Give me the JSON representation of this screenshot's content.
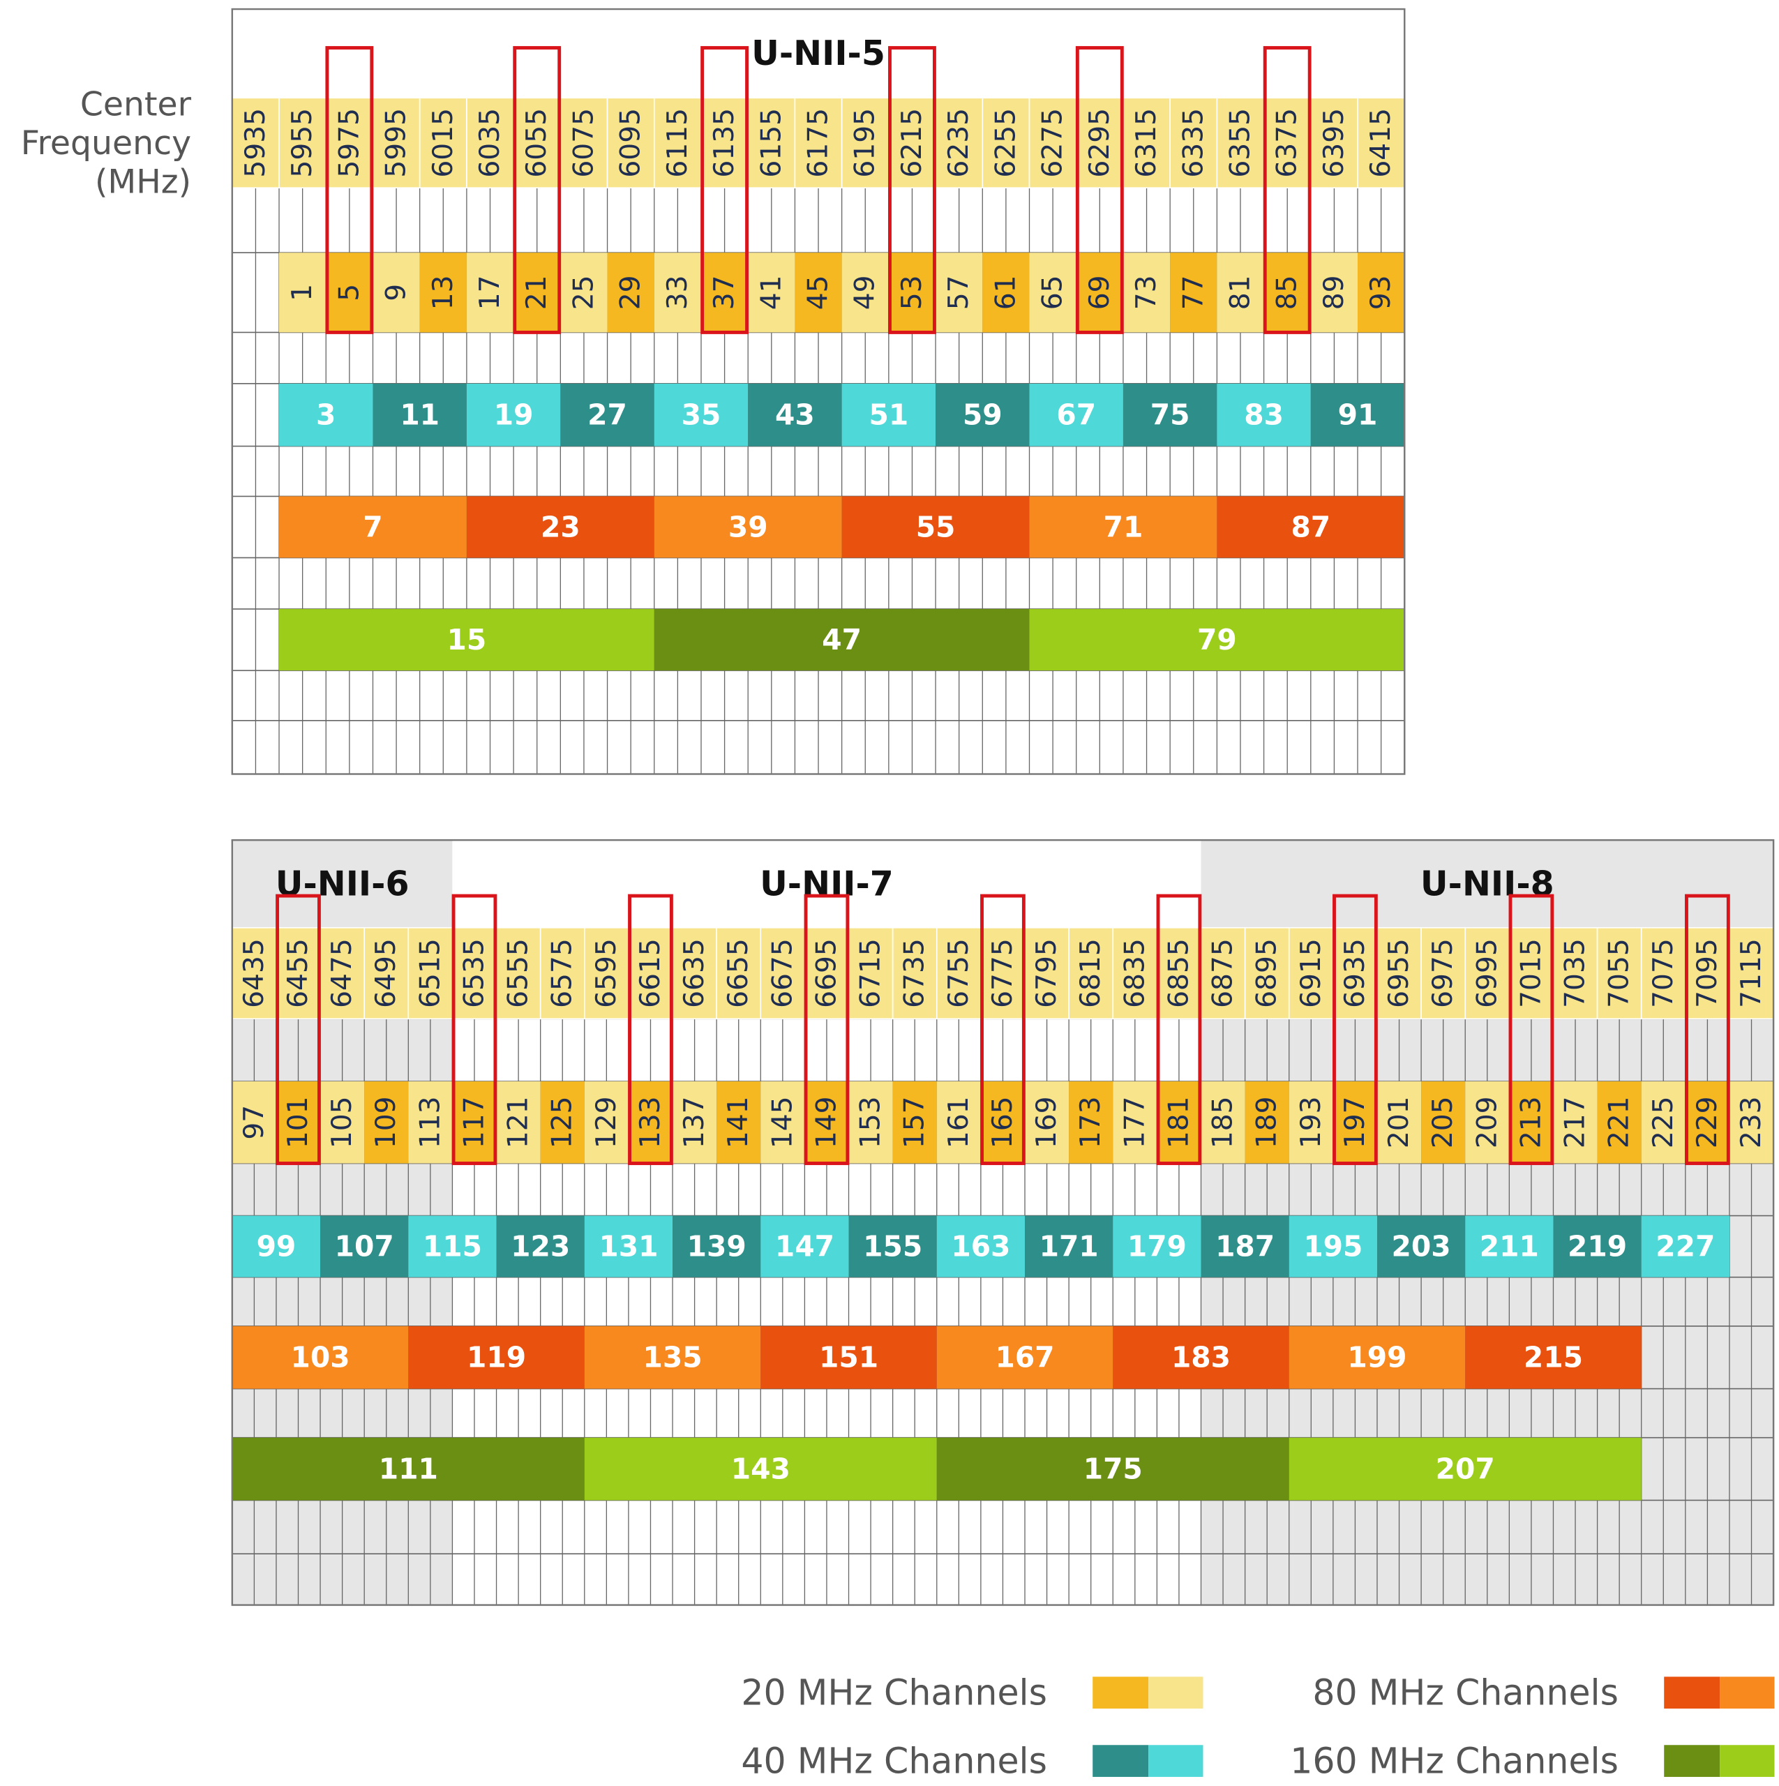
{
  "axis_label": [
    "Center",
    "Frequency",
    "(MHz)"
  ],
  "frequency_color": "#f8e48a",
  "panels": [
    {
      "bands": [
        {
          "label": "U-NII-5",
          "background": "#ffffff"
        }
      ],
      "frequencies": [
        5935,
        5955,
        5975,
        5995,
        6015,
        6035,
        6055,
        6075,
        6095,
        6115,
        6135,
        6155,
        6175,
        6195,
        6215,
        6235,
        6255,
        6275,
        6295,
        6315,
        6335,
        6355,
        6375,
        6395,
        6415
      ],
      "channels_20": {
        "values": [
          1,
          5,
          9,
          13,
          17,
          21,
          25,
          29,
          33,
          37,
          41,
          45,
          49,
          53,
          57,
          61,
          65,
          69,
          73,
          77,
          81,
          85,
          89,
          93
        ],
        "highlighted": [
          false,
          true,
          false,
          false,
          false,
          true,
          false,
          false,
          false,
          true,
          false,
          false,
          false,
          true,
          false,
          false,
          false,
          true,
          false,
          false,
          false,
          true,
          false,
          false
        ],
        "colors": [
          "#f8e48a",
          "#f5b820"
        ]
      },
      "channels_40": {
        "values": [
          3,
          11,
          19,
          27,
          35,
          43,
          51,
          59,
          67,
          75,
          83,
          91
        ],
        "colors": [
          "#4fd8d8",
          "#2e8f8a"
        ]
      },
      "channels_80": {
        "values": [
          7,
          23,
          39,
          55,
          71,
          87
        ],
        "colors": [
          "#f7891f",
          "#e9510f"
        ]
      },
      "channels_160": {
        "values": [
          15,
          47,
          79
        ],
        "colors": [
          "#9ccd1b",
          "#6a8f12"
        ]
      }
    },
    {
      "bands": [
        {
          "label": "U-NII-6",
          "background": "#e6e6e6"
        },
        {
          "label": "U-NII-7",
          "background": "#ffffff"
        },
        {
          "label": "U-NII-8",
          "background": "#e6e6e6"
        }
      ],
      "frequencies": [
        6435,
        6455,
        6475,
        6495,
        6515,
        6535,
        6555,
        6575,
        6595,
        6615,
        6635,
        6655,
        6675,
        6695,
        6715,
        6735,
        6755,
        6775,
        6795,
        6815,
        6835,
        6855,
        6875,
        6895,
        6915,
        6935,
        6955,
        6975,
        6995,
        7015,
        7035,
        7055,
        7075,
        7095,
        7115
      ],
      "channels_20": {
        "values": [
          97,
          101,
          105,
          109,
          113,
          117,
          121,
          125,
          129,
          133,
          137,
          141,
          145,
          149,
          153,
          157,
          161,
          165,
          169,
          173,
          177,
          181,
          185,
          189,
          193,
          197,
          201,
          205,
          209,
          213,
          217,
          221,
          225,
          229,
          233
        ],
        "highlighted": [
          false,
          true,
          false,
          false,
          false,
          true,
          false,
          false,
          false,
          true,
          false,
          false,
          false,
          true,
          false,
          false,
          false,
          true,
          false,
          false,
          false,
          true,
          false,
          false,
          false,
          true,
          false,
          false,
          false,
          true,
          false,
          false,
          false,
          true,
          false
        ],
        "colors": [
          "#f8e48a",
          "#f5b820"
        ]
      },
      "channels_40": {
        "values": [
          99,
          107,
          115,
          123,
          131,
          139,
          147,
          155,
          163,
          171,
          179,
          187,
          195,
          203,
          211,
          219,
          227
        ],
        "colors": [
          "#4fd8d8",
          "#2e8f8a"
        ]
      },
      "channels_80": {
        "values": [
          103,
          119,
          135,
          151,
          167,
          183,
          199,
          215
        ],
        "colors": [
          "#f7891f",
          "#e9510f"
        ]
      },
      "channels_160": {
        "values": [
          111,
          143,
          175,
          207
        ],
        "colors": [
          "#6a8f12",
          "#9ccd1b"
        ]
      }
    }
  ],
  "legend": [
    {
      "label": "20 MHz Channels",
      "colors": [
        "#f8e48a",
        "#f5b820"
      ]
    },
    {
      "label": "40 MHz Channels",
      "colors": [
        "#4fd8d8",
        "#2e8f8a"
      ]
    },
    {
      "label": "80 MHz Channels",
      "colors": [
        "#f7891f",
        "#e9510f"
      ]
    },
    {
      "label": "160 MHz Channels",
      "colors": [
        "#9ccd1b",
        "#6a8f12"
      ]
    }
  ]
}
